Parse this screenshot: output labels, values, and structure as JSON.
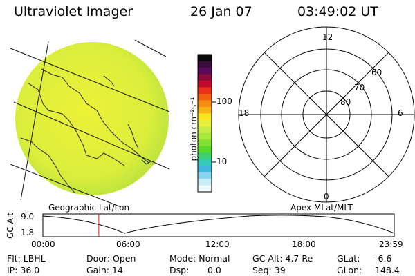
{
  "header": {
    "title": "Ultraviolet Imager",
    "date": "26 Jan 07",
    "time": "03:49:02 UT"
  },
  "colorbar": {
    "unit_label": "photon cm⁻²s⁻¹",
    "ticks": [
      "100",
      "10"
    ],
    "ticks_values": [
      100,
      10
    ],
    "colors": [
      "#0a0a0a",
      "#3a0d3a",
      "#5a0a5a",
      "#8a0a3a",
      "#c00a2a",
      "#e8301a",
      "#f06010",
      "#f48a10",
      "#f8b414",
      "#fce51e",
      "#e6f03c",
      "#c8ec46",
      "#a8e83c",
      "#84e030",
      "#58d828",
      "#3cd070",
      "#38c8b8",
      "#40b8e0",
      "#8ad4f0",
      "#c8ecf6",
      "#f0f8fb"
    ]
  },
  "polar": {
    "clock_labels": [
      "12",
      "18",
      "6",
      "0"
    ],
    "lat_labels": [
      "60",
      "70",
      "80"
    ]
  },
  "timeline": {
    "y_axis_label": "GC Alt",
    "left_caption": "Geographic Lat/Lon",
    "right_caption": "Apex MLat/MLT",
    "y_ticks": [
      "9.0",
      "1.8"
    ],
    "x_ticks": [
      "00:00",
      "06:00",
      "12:00",
      "18:00",
      "23:59"
    ],
    "current_time_hours": 3.82
  },
  "status": {
    "flt": "Flt: LBHL",
    "ip": "IP: 36.0",
    "door": "Door: Open",
    "gain": "Gain: 14",
    "mode": "Mode: Normal",
    "dsp_label": "Dsp:",
    "dsp_value": "0.0",
    "gc_alt": "GC Alt: 4.7 Re",
    "seq": "Seq: 39",
    "glat_label": "GLat:",
    "glat_value": "-6.6",
    "glon_label": "GLon:",
    "glon_value": "148.4"
  },
  "colors": {
    "disk": "#e2ef3c",
    "disk_rim": "#b4e03a",
    "time_marker": "#cc2020"
  }
}
